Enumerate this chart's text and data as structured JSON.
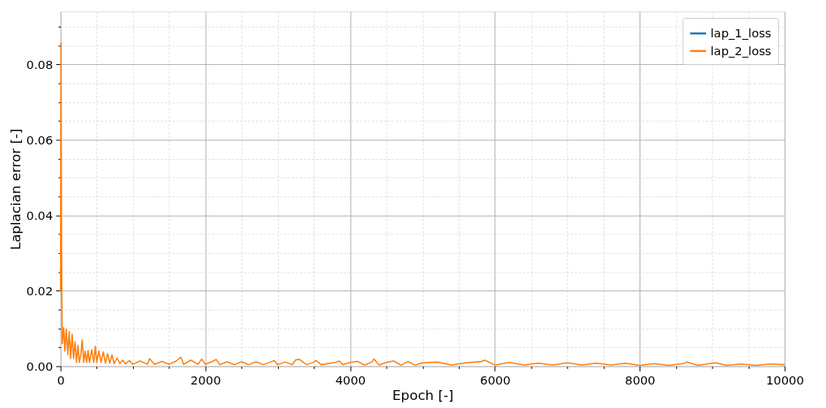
{
  "chart_data": {
    "type": "line",
    "xlabel": "Epoch [-]",
    "ylabel": "Laplacian error [-]",
    "xlim": [
      0,
      10000
    ],
    "ylim": [
      0,
      0.094
    ],
    "xticks": [
      0,
      {
        "value": 500,
        "label": null
      },
      {
        "value": 1000,
        "label": null
      },
      {
        "value": 1500,
        "label": null
      },
      2000,
      {
        "value": 2500,
        "label": null
      },
      {
        "value": 3000,
        "label": null
      },
      {
        "value": 3500,
        "label": null
      },
      4000,
      {
        "value": 4500,
        "label": null
      },
      {
        "value": 5000,
        "label": null
      },
      {
        "value": 5500,
        "label": null
      },
      6000,
      {
        "value": 6500,
        "label": null
      },
      {
        "value": 7000,
        "label": null
      },
      {
        "value": 7500,
        "label": null
      },
      8000,
      {
        "value": 8500,
        "label": null
      },
      {
        "value": 9000,
        "label": null
      },
      {
        "value": 9500,
        "label": null
      },
      10000
    ],
    "yticks": [
      {
        "value": 0,
        "label": "0.00"
      },
      {
        "value": 0.005,
        "label": null
      },
      {
        "value": 0.01,
        "label": null
      },
      {
        "value": 0.015,
        "label": null
      },
      0.02,
      {
        "value": 0.025,
        "label": null
      },
      {
        "value": 0.03,
        "label": null
      },
      {
        "value": 0.035,
        "label": null
      },
      0.04,
      {
        "value": 0.045,
        "label": null
      },
      {
        "value": 0.05,
        "label": null
      },
      {
        "value": 0.055,
        "label": null
      },
      0.06,
      {
        "value": 0.065,
        "label": null
      },
      {
        "value": 0.07,
        "label": null
      },
      {
        "value": 0.075,
        "label": null
      },
      0.08,
      {
        "value": 0.085,
        "label": null
      },
      {
        "value": 0.09,
        "label": null
      }
    ],
    "grid": true,
    "legend": "top right",
    "marker": "none",
    "line_style": "solid",
    "series": [
      {
        "name": "lap_1_loss",
        "color": "#1f77b4"
      },
      {
        "name": "lap_2_loss",
        "color": "#ff7f0e",
        "x": [
          0,
          7,
          12,
          15,
          20,
          25,
          44,
          60,
          80,
          100,
          120,
          140,
          160,
          180,
          200,
          220,
          240,
          260,
          280,
          300,
          320,
          340,
          360,
          380,
          400,
          430,
          460,
          480,
          500,
          530,
          560,
          590,
          620,
          650,
          680,
          710,
          740,
          780,
          820,
          860,
          900,
          950,
          1000,
          1100,
          1200,
          1230,
          1300,
          1400,
          1500,
          1600,
          1660,
          1700,
          1800,
          1900,
          1950,
          2000,
          2100,
          2150,
          2200,
          2300,
          2400,
          2500,
          2600,
          2700,
          2800,
          2900,
          2950,
          3000,
          3100,
          3200,
          3250,
          3300,
          3400,
          3500,
          3530,
          3600,
          3800,
          3850,
          3900,
          4000,
          4100,
          4200,
          4300,
          4330,
          4400,
          4500,
          4600,
          4700,
          4800,
          4900,
          5000,
          5200,
          5400,
          5600,
          5800,
          5860,
          6000,
          6200,
          6400,
          6600,
          6800,
          7000,
          7200,
          7400,
          7600,
          7800,
          8000,
          8200,
          8400,
          8600,
          8650,
          8800,
          9000,
          9050,
          9200,
          9400,
          9600,
          9800,
          10000
        ],
        "values": [
          0.02,
          0.0857,
          0.05,
          0.0307,
          0.0144,
          0.006,
          0.0102,
          0.004,
          0.0098,
          0.003,
          0.0092,
          0.002,
          0.0085,
          0.002,
          0.0065,
          0.001,
          0.0055,
          0.001,
          0.003,
          0.007,
          0.001,
          0.004,
          0.001,
          0.0042,
          0.001,
          0.0044,
          0.001,
          0.0053,
          0.001,
          0.004,
          0.001,
          0.0038,
          0.0008,
          0.0033,
          0.0008,
          0.003,
          0.0007,
          0.0022,
          0.0007,
          0.0016,
          0.0006,
          0.0015,
          0.0005,
          0.0014,
          0.0005,
          0.002,
          0.0005,
          0.0013,
          0.0005,
          0.0014,
          0.0024,
          0.0005,
          0.0016,
          0.0005,
          0.0019,
          0.0005,
          0.0013,
          0.0018,
          0.0004,
          0.0012,
          0.0004,
          0.0012,
          0.0004,
          0.0012,
          0.0004,
          0.0011,
          0.0015,
          0.0004,
          0.0011,
          0.0004,
          0.0017,
          0.0018,
          0.0004,
          0.0011,
          0.0015,
          0.0004,
          0.001,
          0.0014,
          0.0004,
          0.001,
          0.0013,
          0.0003,
          0.0011,
          0.0019,
          0.0003,
          0.001,
          0.0014,
          0.0003,
          0.0012,
          0.0003,
          0.0009,
          0.0011,
          0.0003,
          0.0009,
          0.0012,
          0.0016,
          0.0003,
          0.001,
          0.0003,
          0.0008,
          0.0003,
          0.0009,
          0.0003,
          0.0008,
          0.0003,
          0.0008,
          0.0002,
          0.0007,
          0.0002,
          0.0007,
          0.0011,
          0.0002,
          0.0008,
          0.0009,
          0.0002,
          0.0006,
          0.0002,
          0.0006,
          0.0004
        ]
      }
    ]
  }
}
